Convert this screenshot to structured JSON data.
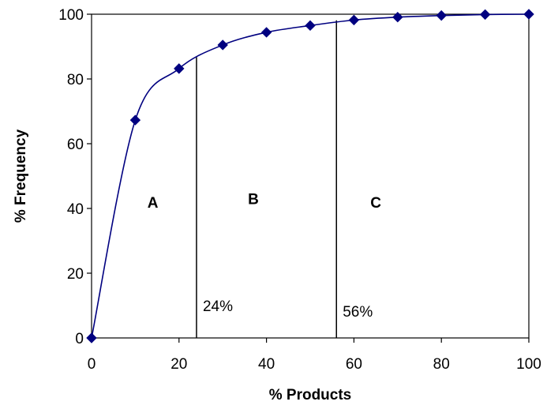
{
  "chart_data": {
    "type": "line",
    "xlabel": "% Products",
    "ylabel": "% Frequency",
    "xlim": [
      0,
      100
    ],
    "ylim": [
      0,
      100
    ],
    "x_ticks": [
      "0",
      "20",
      "40",
      "60",
      "80",
      "100"
    ],
    "y_ticks": [
      "0",
      "20",
      "40",
      "60",
      "80",
      "100"
    ],
    "grid": false,
    "legend": "none",
    "series": [
      {
        "color": "#000080",
        "marker": "diamond",
        "points": [
          {
            "x": 0,
            "y": 0
          },
          {
            "x": 10,
            "y": 67.3
          },
          {
            "x": 20,
            "y": 83.2
          },
          {
            "x": 30,
            "y": 90.5
          },
          {
            "x": 40,
            "y": 94.4
          },
          {
            "x": 50,
            "y": 96.5
          },
          {
            "x": 60,
            "y": 98.2
          },
          {
            "x": 70,
            "y": 99.1
          },
          {
            "x": 80,
            "y": 99.6
          },
          {
            "x": 90,
            "y": 99.9
          },
          {
            "x": 100,
            "y": 100
          }
        ]
      }
    ],
    "vertical_lines": [
      {
        "x": 24,
        "label": "24%"
      },
      {
        "x": 56,
        "label": "56%"
      }
    ],
    "region_labels": [
      {
        "text": "A",
        "x": 14,
        "y": 42
      },
      {
        "text": "B",
        "x": 37,
        "y": 43
      },
      {
        "text": "C",
        "x": 65,
        "y": 42
      }
    ]
  }
}
